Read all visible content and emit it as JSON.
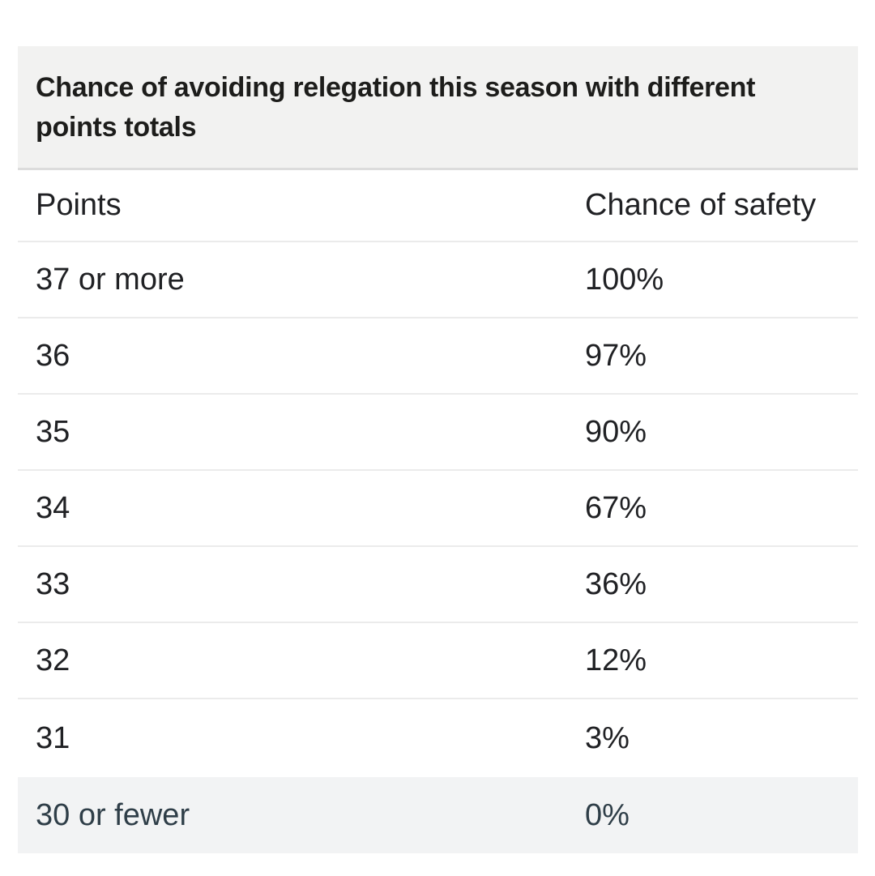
{
  "chart_data": {
    "type": "table",
    "title": "Chance of avoiding relegation this season with different points totals",
    "columns": [
      "Points",
      "Chance of safety"
    ],
    "rows": [
      [
        "37 or more",
        "100%"
      ],
      [
        "36",
        "97%"
      ],
      [
        "35",
        "90%"
      ],
      [
        "34",
        "67%"
      ],
      [
        "33",
        "36%"
      ],
      [
        "32",
        "12%"
      ],
      [
        "31",
        "3%"
      ],
      [
        "30 or fewer",
        "0%"
      ]
    ],
    "highlighted_row": "30 or fewer",
    "legend_position": "none",
    "grid": "horizontal-dividers"
  },
  "colors": {
    "page_bg": "#ffffff",
    "title_block_bg": "#f2f2f1",
    "title_block_border": "#dcdcdc",
    "title_text": "#1d1d1b",
    "table_text": "#202124",
    "row_divider": "#ebebeb",
    "highlight_row_bg": "#f2f3f4",
    "highlight_row_text": "#2f3e48"
  }
}
